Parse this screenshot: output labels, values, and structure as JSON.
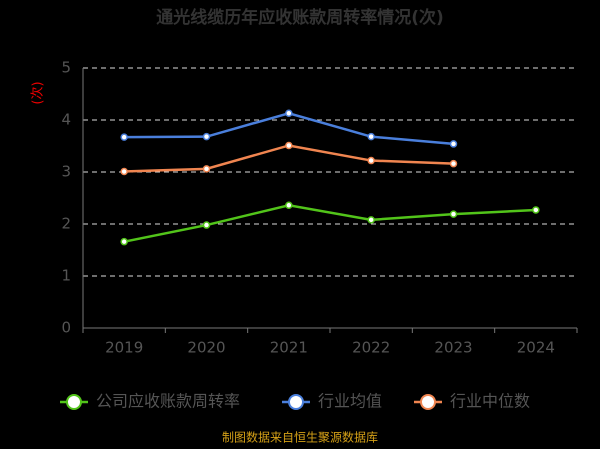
{
  "chart_data": {
    "type": "line",
    "title": "通光线缆历年应收账款周转率情况(次)",
    "y_label": "(次)",
    "source": "制图数据来自恒生聚源数据库",
    "categories": [
      "2019",
      "2020",
      "2021",
      "2022",
      "2023",
      "2024"
    ],
    "series": [
      {
        "name": "公司应收账款周转率",
        "color": "#52c41a",
        "values": [
          1.66,
          1.98,
          2.36,
          2.08,
          2.19,
          2.27
        ]
      },
      {
        "name": "行业均值",
        "color": "#4a7fdc",
        "values": [
          3.67,
          3.68,
          4.13,
          3.68,
          3.54,
          null
        ]
      },
      {
        "name": "行业中位数",
        "color": "#f08550",
        "values": [
          3.01,
          3.06,
          3.51,
          3.22,
          3.16,
          null
        ]
      }
    ],
    "ylim": [
      0,
      5
    ],
    "yticks": [
      0,
      1,
      2,
      3,
      4,
      5
    ],
    "grid": true
  }
}
